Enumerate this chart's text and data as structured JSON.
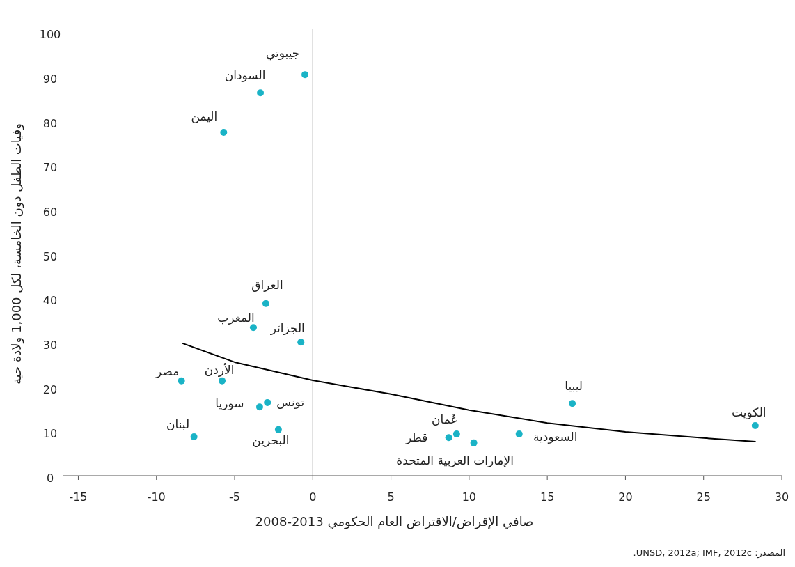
{
  "chart_data": {
    "type": "scatter",
    "xlabel": "صافي الإقراض/الاقتراض العام الحكومي 2013-2008",
    "ylabel": "وفيات الطفل دون الخامسة، لكل 1,000 ولادة حية",
    "xlim": [
      -16,
      30
    ],
    "xticks": [
      -15,
      -10,
      -5,
      0,
      5,
      10,
      15,
      20,
      25,
      30
    ],
    "ylim": [
      0,
      100
    ],
    "yticks": [
      0,
      10,
      20,
      30,
      40,
      50,
      60,
      70,
      80,
      90,
      100
    ],
    "ref_lines": [
      {
        "axis": "x",
        "value": 0,
        "color": "#999999"
      }
    ],
    "grid": false,
    "marker": "circle",
    "series": [
      {
        "color": "#1ab3c6",
        "x": [
          -0.5,
          -3.35,
          -5.7,
          -3.0,
          -3.8,
          -0.76,
          -8.4,
          -5.8,
          -2.9,
          -3.4,
          -7.6,
          -2.2,
          8.7,
          9.2,
          10.3,
          13.2,
          16.6,
          28.3
        ],
        "values": [
          90.4,
          86.3,
          77.4,
          38.8,
          33.4,
          30.1,
          21.4,
          21.4,
          16.5,
          15.5,
          8.8,
          10.4,
          8.6,
          9.4,
          7.4,
          9.4,
          16.3,
          11.3
        ]
      },
      {
        "type": "line",
        "color": "#000000",
        "marker": "none",
        "line_style": "solid",
        "x": [
          -8.3,
          -5,
          0,
          5,
          10,
          15,
          20,
          25,
          28.3
        ],
        "values": [
          29.8,
          25.6,
          21.5,
          18.4,
          14.8,
          11.9,
          9.9,
          8.5,
          7.7
        ]
      }
    ],
    "annotations": [
      {
        "text": "جيبوتي",
        "x": -0.5,
        "y": 90.4
      },
      {
        "text": "السودان",
        "x": -3.35,
        "y": 86.3
      },
      {
        "text": "اليمن",
        "x": -5.7,
        "y": 77.4
      },
      {
        "text": "العراق",
        "x": -3.0,
        "y": 38.8
      },
      {
        "text": "المغرب",
        "x": -3.8,
        "y": 33.4
      },
      {
        "text": "الجزائر",
        "x": -0.76,
        "y": 30.1
      },
      {
        "text": "مصر",
        "x": -8.4,
        "y": 21.4
      },
      {
        "text": "الأردن",
        "x": -5.8,
        "y": 21.4
      },
      {
        "text": "تونس",
        "x": -2.9,
        "y": 16.5
      },
      {
        "text": "سوريا",
        "x": -3.4,
        "y": 15.5
      },
      {
        "text": "لبنان",
        "x": -7.6,
        "y": 8.8
      },
      {
        "text": "البحرين",
        "x": -2.2,
        "y": 10.4
      },
      {
        "text": "قطر",
        "x": 8.7,
        "y": 8.6
      },
      {
        "text": "عُمان",
        "x": 9.2,
        "y": 9.4
      },
      {
        "text": "الإمارات العربية المتحدة",
        "x": 10.3,
        "y": 7.4
      },
      {
        "text": "السعودية",
        "x": 13.2,
        "y": 9.4
      },
      {
        "text": "ليبيا",
        "x": 16.6,
        "y": 16.3
      },
      {
        "text": "الكويت",
        "x": 28.3,
        "y": 11.3
      },
      "المصدر: UNSD, 2012a; IMF, 2012c."
    ]
  }
}
